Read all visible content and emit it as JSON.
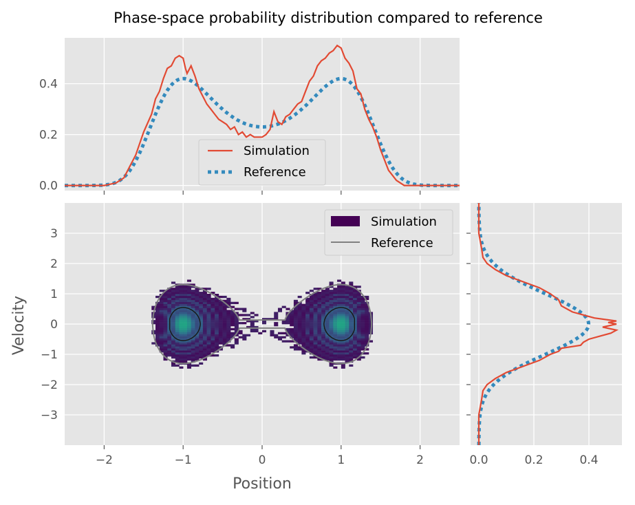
{
  "title": "Phase-space probability distribution compared to reference",
  "colors": {
    "panel_bg": "#e5e5e5",
    "grid": "#ffffff",
    "simulation": "#e24a33",
    "reference": "#348abd",
    "hist_low": "#440154",
    "hist_high": "#21a685",
    "reference_contour": "#808080",
    "text": "#555555"
  },
  "chart_data": [
    {
      "type": "line",
      "panel": "top marginal",
      "xlim": [
        -2.5,
        2.5
      ],
      "ylim": [
        -0.02,
        0.58
      ],
      "yticks": [
        0.0,
        0.2,
        0.4
      ],
      "ytick_labels": [
        "0.0",
        "0.2",
        "0.4"
      ],
      "legend": {
        "loc": "lower center",
        "entries": [
          "Simulation",
          "Reference"
        ]
      },
      "series": [
        {
          "name": "Simulation",
          "x": [
            -2.5,
            -2.0,
            -1.85,
            -1.75,
            -1.7,
            -1.6,
            -1.5,
            -1.4,
            -1.35,
            -1.3,
            -1.25,
            -1.2,
            -1.15,
            -1.1,
            -1.05,
            -1.0,
            -0.97,
            -0.95,
            -0.9,
            -0.85,
            -0.8,
            -0.75,
            -0.7,
            -0.65,
            -0.6,
            -0.55,
            -0.5,
            -0.45,
            -0.4,
            -0.35,
            -0.3,
            -0.25,
            -0.2,
            -0.15,
            -0.1,
            -0.05,
            0.0,
            0.05,
            0.1,
            0.15,
            0.2,
            0.25,
            0.3,
            0.35,
            0.4,
            0.45,
            0.5,
            0.55,
            0.6,
            0.65,
            0.7,
            0.75,
            0.8,
            0.85,
            0.9,
            0.95,
            1.0,
            1.05,
            1.1,
            1.15,
            1.2,
            1.25,
            1.3,
            1.35,
            1.4,
            1.45,
            1.5,
            1.6,
            1.7,
            1.8,
            2.0,
            2.5
          ],
          "y": [
            0.0,
            0.0,
            0.01,
            0.03,
            0.06,
            0.12,
            0.21,
            0.28,
            0.34,
            0.37,
            0.42,
            0.46,
            0.47,
            0.5,
            0.51,
            0.5,
            0.46,
            0.44,
            0.47,
            0.43,
            0.38,
            0.35,
            0.32,
            0.3,
            0.28,
            0.26,
            0.25,
            0.24,
            0.22,
            0.23,
            0.2,
            0.21,
            0.19,
            0.2,
            0.19,
            0.19,
            0.19,
            0.2,
            0.22,
            0.29,
            0.25,
            0.24,
            0.27,
            0.28,
            0.3,
            0.32,
            0.33,
            0.37,
            0.41,
            0.43,
            0.47,
            0.49,
            0.5,
            0.52,
            0.53,
            0.55,
            0.54,
            0.5,
            0.48,
            0.45,
            0.38,
            0.36,
            0.3,
            0.26,
            0.23,
            0.19,
            0.14,
            0.06,
            0.02,
            0.0,
            0.0,
            0.0
          ]
        },
        {
          "name": "Reference",
          "function": "double-well marginal p(x)",
          "peak": 0.42,
          "center_min": 0.23
        }
      ]
    },
    {
      "type": "heatmap",
      "panel": "joint phase-space",
      "xlabel": "Position",
      "ylabel": "Velocity",
      "xlim": [
        -2.5,
        2.5
      ],
      "ylim": [
        -4.0,
        4.0
      ],
      "xticks": [
        -2,
        -1,
        0,
        1,
        2
      ],
      "xtick_labels": [
        "−2",
        "−1",
        "0",
        "1",
        "2"
      ],
      "yticks": [
        -3,
        -2,
        -1,
        0,
        1,
        2,
        3
      ],
      "ytick_labels": [
        "−3",
        "−2",
        "−1",
        "0",
        "1",
        "2",
        "3"
      ],
      "legend": {
        "loc": "upper right",
        "entries": [
          "Simulation",
          "Reference"
        ]
      },
      "wells": [
        -1,
        1
      ],
      "separatrix_energy": 0.0,
      "reference_energies": [
        0.0,
        -0.18
      ]
    },
    {
      "type": "line",
      "panel": "right marginal",
      "xlim": [
        -0.03,
        0.52
      ],
      "ylim": [
        -4.0,
        4.0
      ],
      "xticks": [
        0.0,
        0.2,
        0.4
      ],
      "xtick_labels": [
        "0.0",
        "0.2",
        "0.4"
      ],
      "series": [
        {
          "name": "Simulation",
          "y": [
            -4.0,
            -3.0,
            -2.5,
            -2.2,
            -2.0,
            -1.8,
            -1.6,
            -1.4,
            -1.2,
            -1.0,
            -0.9,
            -0.8,
            -0.7,
            -0.6,
            -0.5,
            -0.4,
            -0.3,
            -0.2,
            -0.1,
            0.0,
            0.05,
            0.1,
            0.2,
            0.3,
            0.4,
            0.6,
            0.8,
            1.0,
            1.2,
            1.4,
            1.6,
            1.8,
            2.0,
            2.2,
            2.5,
            3.0,
            4.0
          ],
          "x": [
            0.0,
            0.0,
            0.01,
            0.015,
            0.03,
            0.06,
            0.1,
            0.16,
            0.22,
            0.26,
            0.29,
            0.3,
            0.37,
            0.38,
            0.4,
            0.44,
            0.48,
            0.5,
            0.45,
            0.5,
            0.47,
            0.5,
            0.42,
            0.38,
            0.34,
            0.3,
            0.29,
            0.26,
            0.22,
            0.16,
            0.1,
            0.06,
            0.03,
            0.015,
            0.01,
            0.0,
            0.0
          ]
        },
        {
          "name": "Reference",
          "function": "Gaussian p(v)",
          "peak": 0.399,
          "sigma": 1.0
        }
      ]
    }
  ]
}
